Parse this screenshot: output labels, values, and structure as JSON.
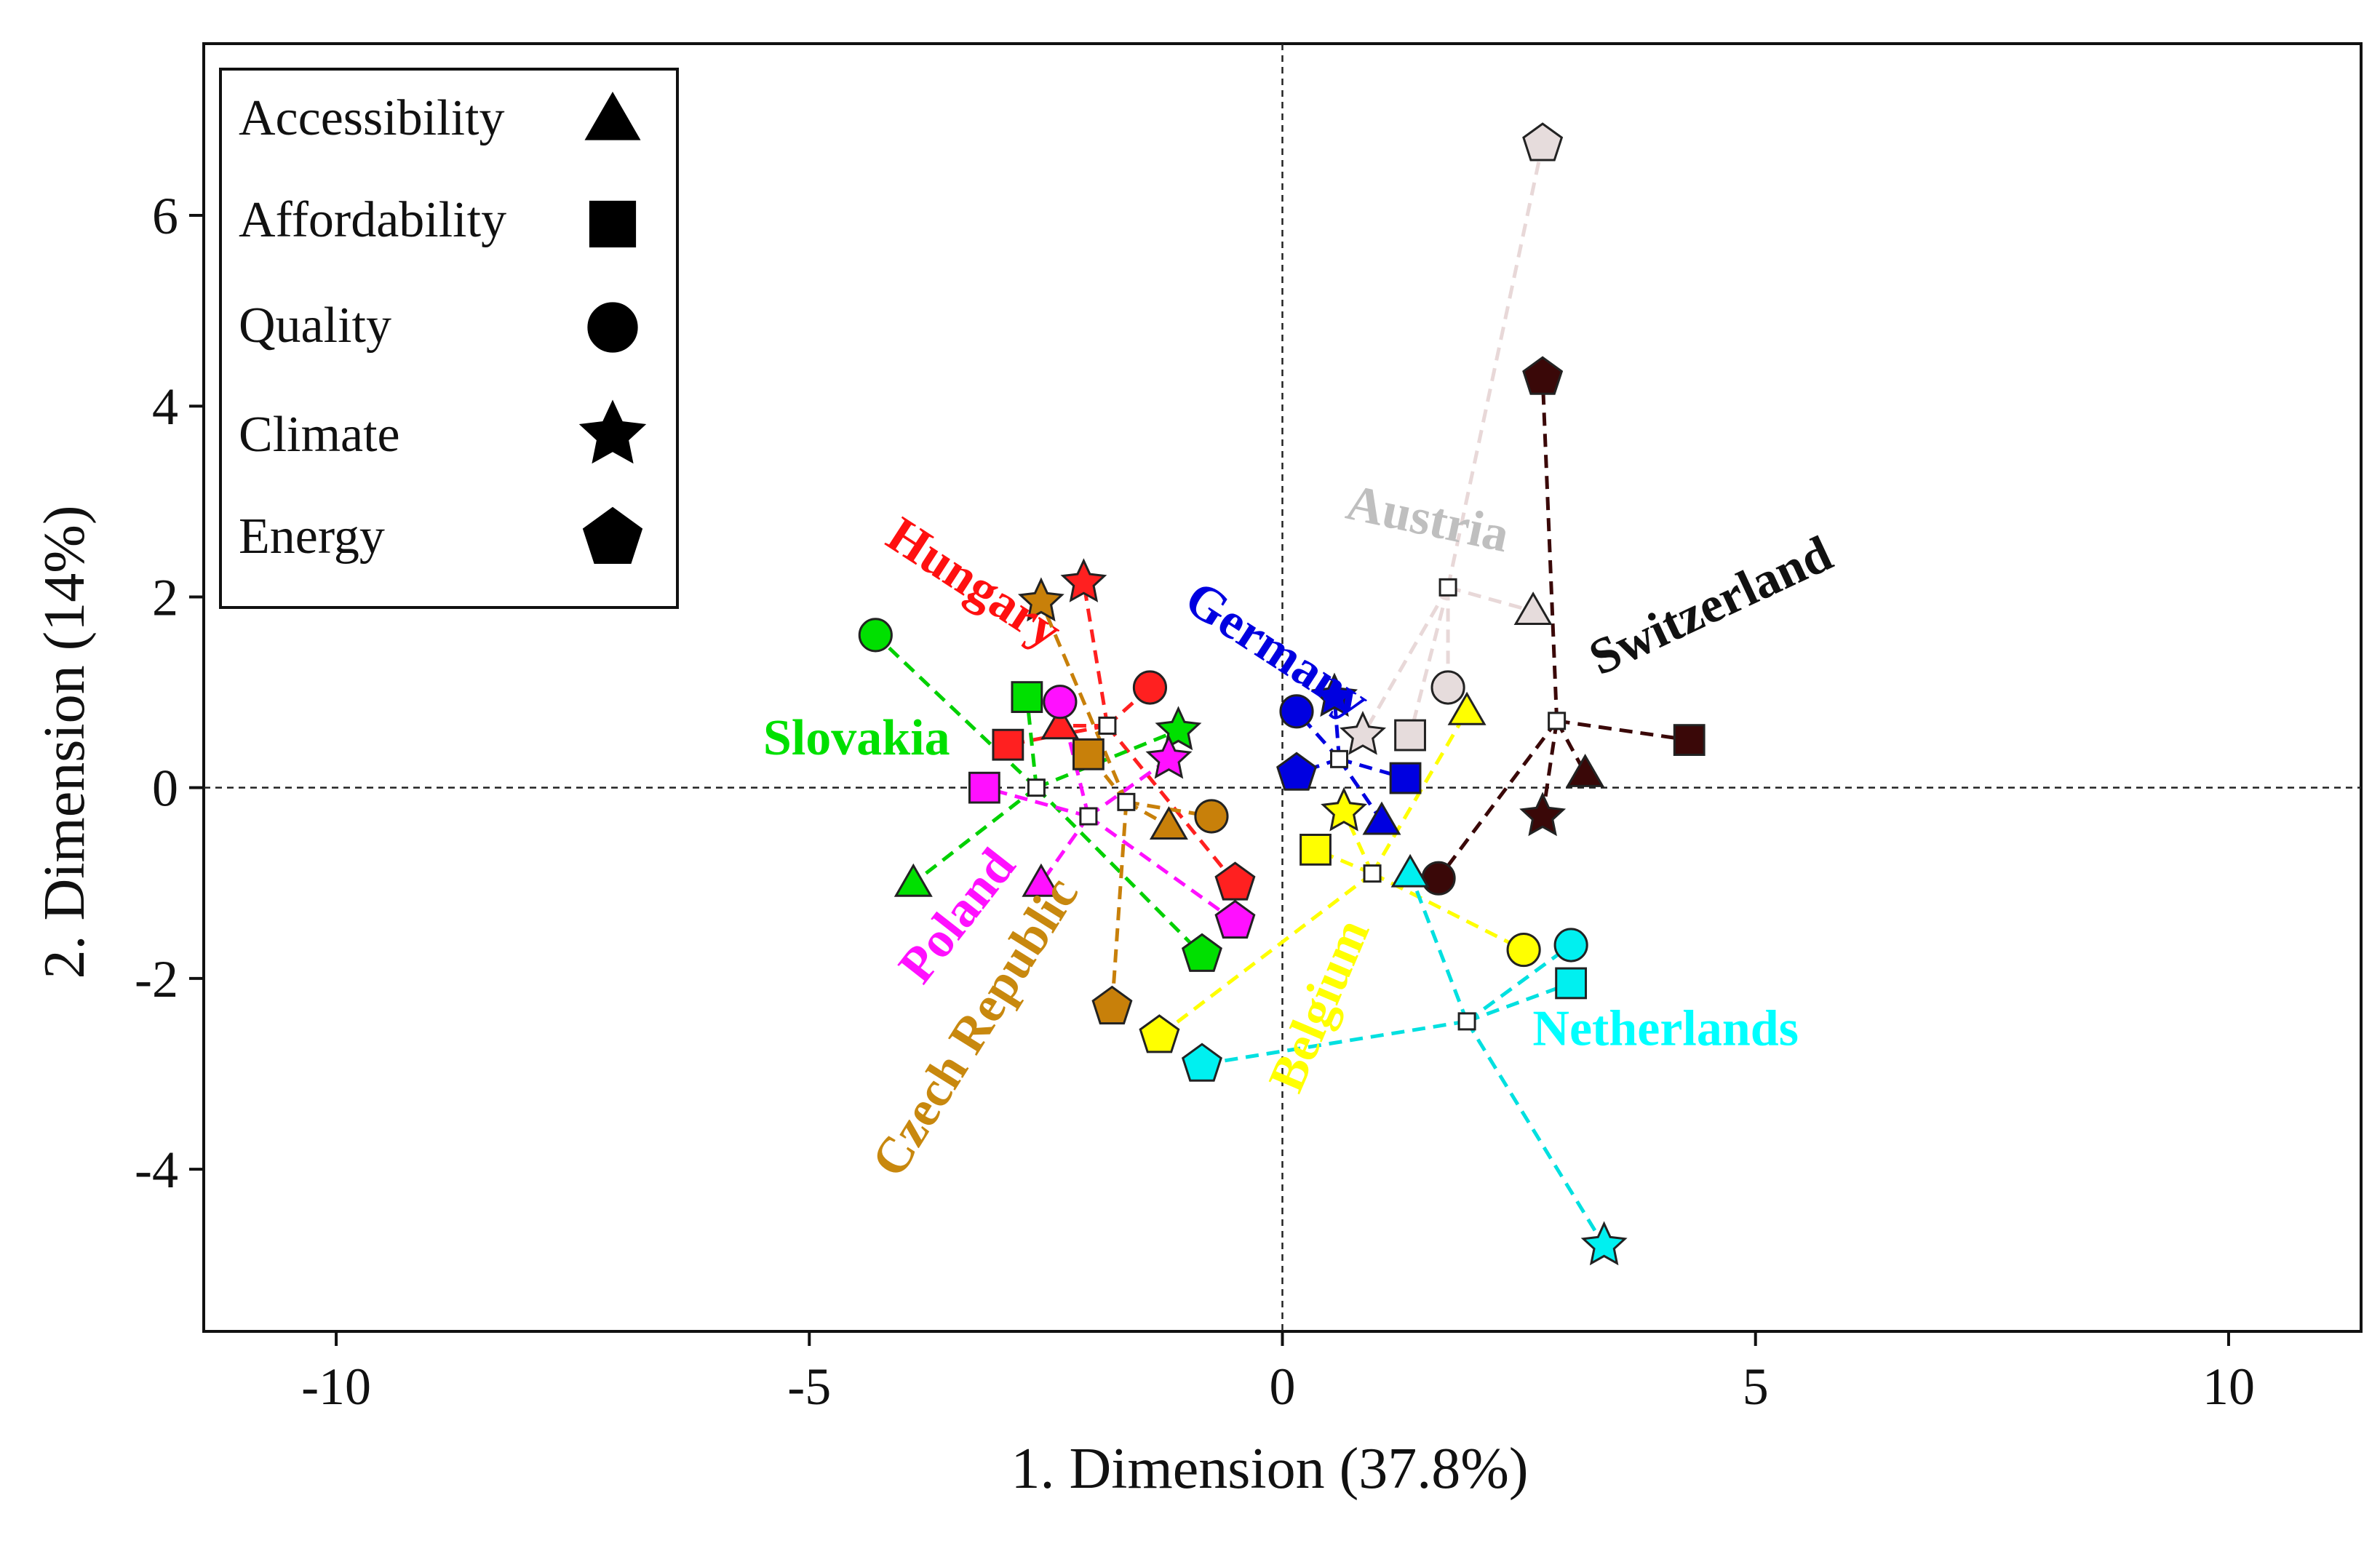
{
  "chart_data": {
    "type": "scatter",
    "title": "",
    "xlabel": "1. Dimension (37.8%)",
    "ylabel": "2. Dimension (14%)",
    "xlim": [
      -11.4,
      11.4
    ],
    "ylim": [
      -5.7,
      7.8
    ],
    "xticks": [
      -10,
      -5,
      0,
      5,
      10
    ],
    "yticks": [
      -4,
      -2,
      0,
      2,
      4,
      6
    ],
    "grid": false,
    "reference_lines": {
      "x": 0,
      "y": 0
    },
    "legend": {
      "position": "top-left",
      "entries": [
        {
          "label": "Accessibility",
          "marker": "triangle"
        },
        {
          "label": "Affordability",
          "marker": "square"
        },
        {
          "label": "Quality",
          "marker": "circle"
        },
        {
          "label": "Climate",
          "marker": "star"
        },
        {
          "label": "Energy",
          "marker": "pentagon"
        }
      ]
    },
    "series": [
      {
        "name": "Austria",
        "color": "#e6dcdc",
        "line_color": "#e8d8d8",
        "label_color": "#bfbfbf",
        "label_pos": [
          1.5,
          2.65
        ],
        "label_rot": 12,
        "centroid": [
          1.75,
          2.1
        ],
        "points": {
          "Accessibility": [
            2.65,
            1.85
          ],
          "Affordability": [
            1.35,
            0.55
          ],
          "Quality": [
            1.75,
            1.05
          ],
          "Climate": [
            0.85,
            0.55
          ],
          "Energy": [
            2.75,
            6.75
          ]
        }
      },
      {
        "name": "Switzerland",
        "color": "#3a0808",
        "line_color": "#3a0808",
        "label_color": "#111111",
        "label_pos": [
          4.6,
          1.75
        ],
        "label_rot": -25,
        "centroid": [
          2.9,
          0.7
        ],
        "points": {
          "Accessibility": [
            3.2,
            0.15
          ],
          "Affordability": [
            4.3,
            0.5
          ],
          "Quality": [
            1.65,
            -0.95
          ],
          "Climate": [
            2.75,
            -0.3
          ],
          "Energy": [
            2.75,
            4.3
          ]
        }
      },
      {
        "name": "Germany",
        "color": "#0000e0",
        "line_color": "#0000e0",
        "label_color": "#0000e0",
        "label_pos": [
          -0.15,
          1.3
        ],
        "label_rot": 33,
        "centroid": [
          0.6,
          0.3
        ],
        "points": {
          "Accessibility": [
            1.05,
            -0.35
          ],
          "Affordability": [
            1.3,
            0.1
          ],
          "Quality": [
            0.15,
            0.8
          ],
          "Climate": [
            0.55,
            0.95
          ],
          "Energy": [
            0.15,
            0.15
          ]
        }
      },
      {
        "name": "Belgium",
        "color": "#ffff00",
        "line_color": "#ffff00",
        "label_color": "#ffff00",
        "label_pos": [
          0.55,
          -2.35
        ],
        "label_rot": -67,
        "centroid": [
          0.95,
          -0.9
        ],
        "points": {
          "Accessibility": [
            1.95,
            0.8
          ],
          "Affordability": [
            0.35,
            -0.65
          ],
          "Quality": [
            2.55,
            -1.7
          ],
          "Climate": [
            0.65,
            -0.25
          ],
          "Energy": [
            -1.3,
            -2.6
          ]
        }
      },
      {
        "name": "Netherlands",
        "color": "#00f0f0",
        "line_color": "#00e0e0",
        "label_color": "#00ffff",
        "label_pos": [
          4.05,
          -2.7
        ],
        "label_rot": 0,
        "centroid": [
          1.95,
          -2.45
        ],
        "points": {
          "Accessibility": [
            1.35,
            -0.9
          ],
          "Affordability": [
            3.05,
            -2.05
          ],
          "Quality": [
            3.05,
            -1.65
          ],
          "Climate": [
            3.4,
            -4.8
          ],
          "Energy": [
            -0.85,
            -2.9
          ]
        }
      },
      {
        "name": "Hungary",
        "color": "#ff2020",
        "line_color": "#ff2020",
        "label_color": "#ff1010",
        "label_pos": [
          -3.35,
          2.0
        ],
        "label_rot": 33,
        "centroid": [
          -1.85,
          0.65
        ],
        "points": {
          "Accessibility": [
            -2.35,
            0.65
          ],
          "Affordability": [
            -2.9,
            0.45
          ],
          "Quality": [
            -1.4,
            1.05
          ],
          "Climate": [
            -2.1,
            2.15
          ],
          "Energy": [
            -0.5,
            -1.0
          ]
        }
      },
      {
        "name": "Slovakia",
        "color": "#00e000",
        "line_color": "#00d000",
        "label_color": "#00e000",
        "label_pos": [
          -4.5,
          0.35
        ],
        "label_rot": 0,
        "centroid": [
          -2.6,
          0.0
        ],
        "points": {
          "Accessibility": [
            -3.9,
            -1.0
          ],
          "Affordability": [
            -2.7,
            0.95
          ],
          "Quality": [
            -4.3,
            1.6
          ],
          "Climate": [
            -1.1,
            0.6
          ],
          "Energy": [
            -0.85,
            -1.75
          ]
        }
      },
      {
        "name": "Poland",
        "color": "#ff10ff",
        "line_color": "#ff10ff",
        "label_color": "#ff10ff",
        "label_pos": [
          -3.3,
          -1.45
        ],
        "label_rot": -52,
        "centroid": [
          -2.05,
          -0.3
        ],
        "points": {
          "Accessibility": [
            -2.55,
            -1.0
          ],
          "Affordability": [
            -3.15,
            0.0
          ],
          "Quality": [
            -2.35,
            0.9
          ],
          "Climate": [
            -1.2,
            0.3
          ],
          "Energy": [
            -0.5,
            -1.4
          ]
        }
      },
      {
        "name": "Czech Republic",
        "color": "#c8800a",
        "line_color": "#c8800a",
        "label_color": "#c8880e",
        "label_pos": [
          -3.1,
          -2.6
        ],
        "label_rot": -58,
        "centroid": [
          -1.65,
          -0.15
        ],
        "points": {
          "Accessibility": [
            -1.2,
            -0.4
          ],
          "Affordability": [
            -2.05,
            0.35
          ],
          "Quality": [
            -0.75,
            -0.3
          ],
          "Climate": [
            -2.55,
            1.95
          ],
          "Energy": [
            -1.8,
            -2.3
          ]
        }
      }
    ]
  }
}
